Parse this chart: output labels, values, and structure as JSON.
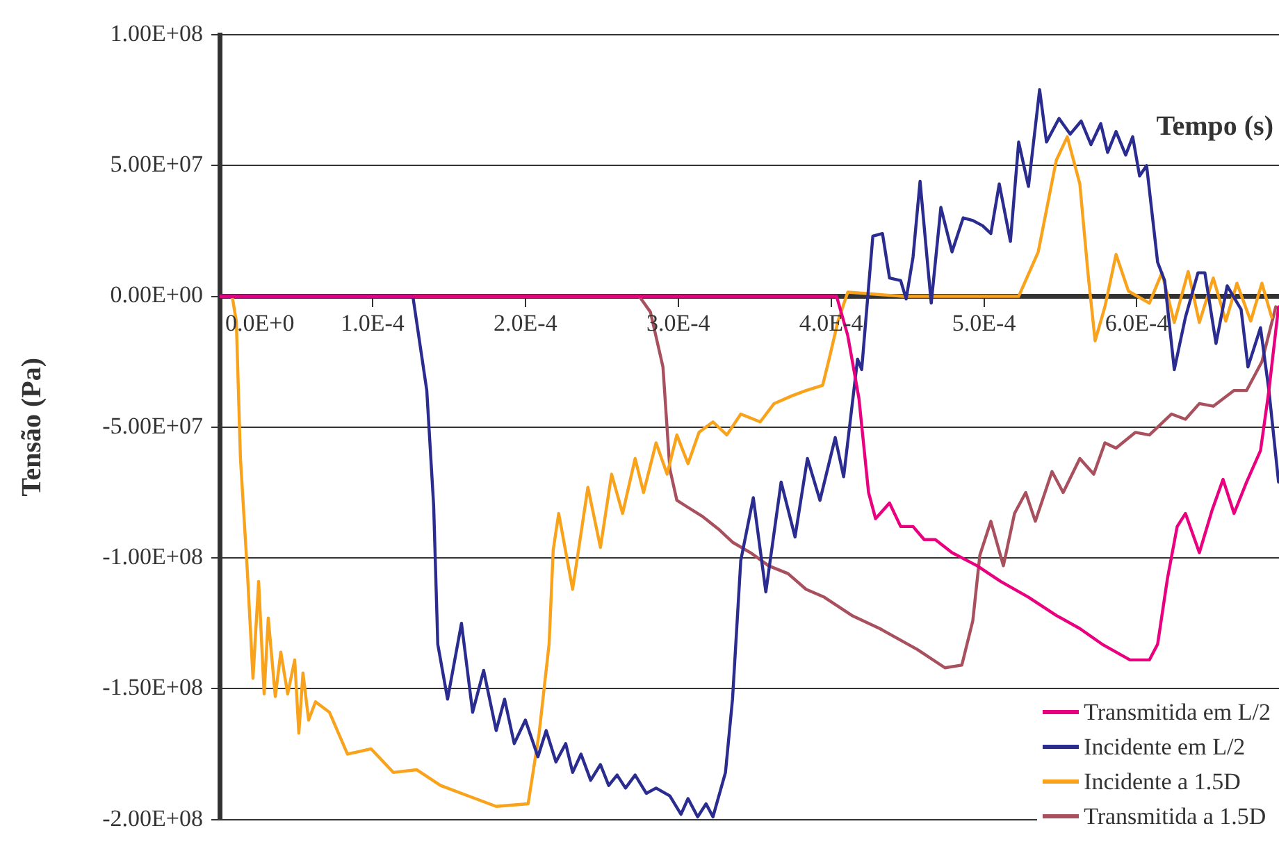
{
  "chart_data": {
    "type": "line",
    "xlabel": "Tempo (s)",
    "ylabel": "Tensão (Pa)",
    "xlim": [
      0,
      0.000693
    ],
    "ylim": [
      -200000000.0,
      100000000.0
    ],
    "xticks": [
      {
        "value": 0,
        "label": "0.0E+0"
      },
      {
        "value": 0.0001,
        "label": "1.0E-4"
      },
      {
        "value": 0.0002,
        "label": "2.0E-4"
      },
      {
        "value": 0.0003,
        "label": "3.0E-4"
      },
      {
        "value": 0.0004,
        "label": "4.0E-4"
      },
      {
        "value": 0.0005,
        "label": "5.0E-4"
      },
      {
        "value": 0.0006,
        "label": "6.0E-4"
      }
    ],
    "yticks": [
      {
        "value": -200000000.0,
        "label": "-2.00E+08"
      },
      {
        "value": -150000000.0,
        "label": "-1.50E+08"
      },
      {
        "value": -100000000.0,
        "label": "-1.00E+08"
      },
      {
        "value": -50000000.0,
        "label": "-5.00E+07"
      },
      {
        "value": 0,
        "label": "0.00E+00"
      },
      {
        "value": 50000000.0,
        "label": "5.00E+07"
      },
      {
        "value": 100000000.0,
        "label": "1.00E+08"
      }
    ],
    "grid": "y",
    "legend": "bottom right",
    "marker": "none",
    "line_style": "solid",
    "series": [
      {
        "name": "Transmitida em L/2",
        "color": "#e8007f",
        "x": [
          0.0,
          0.0004036,
          0.0004109,
          0.0004182,
          0.0004245,
          0.0004291,
          0.0004382,
          0.0004455,
          0.0004536,
          0.0004609,
          0.0004682,
          0.0004791,
          0.0004955,
          0.0005109,
          0.0005291,
          0.0005473,
          0.0005627,
          0.0005773,
          0.0005955,
          0.0006082,
          0.0006136,
          0.00062,
          0.0006264,
          0.0006318,
          0.0006409,
          0.0006491,
          0.0006564,
          0.0006636,
          0.0006718,
          0.0006809,
          0.0006864,
          0.0006927
        ],
        "values": [
          0,
          0,
          -15000000.0,
          -39000000.0,
          -75000000.0,
          -85000000.0,
          -79000000.0,
          -88000000.0,
          -88000000.0,
          -93000000.0,
          -93000000.0,
          -98000000.0,
          -103000000.0,
          -109000000.0,
          -115000000.0,
          -122000000.0,
          -127000000.0,
          -133000000.0,
          -139000000.0,
          -139000000.0,
          -133000000.0,
          -108000000.0,
          -88000000.0,
          -83000000.0,
          -98000000.0,
          -82000000.0,
          -70000000.0,
          -83000000.0,
          -71000000.0,
          -59000000.0,
          -36000000.0,
          -4000000.0
        ]
      },
      {
        "name": "Incidente em L/2",
        "color": "#2b2c8f",
        "x": [
          0.0,
          0.0001264,
          0.0001355,
          0.00014,
          0.0001427,
          0.0001491,
          0.0001582,
          0.0001655,
          0.0001727,
          0.0001809,
          0.0001864,
          0.0001927,
          0.0002,
          0.0002082,
          0.0002136,
          0.00022,
          0.0002264,
          0.0002309,
          0.0002364,
          0.0002427,
          0.0002491,
          0.0002545,
          0.00026,
          0.0002655,
          0.0002718,
          0.0002791,
          0.0002855,
          0.0002945,
          0.0003018,
          0.0003064,
          0.0003127,
          0.0003182,
          0.0003227,
          0.0003309,
          0.0003355,
          0.0003409,
          0.0003491,
          0.0003573,
          0.0003673,
          0.0003764,
          0.0003845,
          0.0003927,
          0.0004027,
          0.0004082,
          0.0004173,
          0.00042,
          0.0004273,
          0.0004336,
          0.0004382,
          0.0004455,
          0.0004491,
          0.0004536,
          0.0004582,
          0.0004627,
          0.0004655,
          0.0004718,
          0.0004791,
          0.0004864,
          0.0004927,
          0.0004991,
          0.0005045,
          0.00051,
          0.0005173,
          0.0005227,
          0.0005291,
          0.0005364,
          0.0005409,
          0.0005491,
          0.0005564,
          0.0005636,
          0.00057,
          0.0005764,
          0.0005809,
          0.0005864,
          0.0005927,
          0.0005973,
          0.0006018,
          0.0006064,
          0.0006136,
          0.0006182,
          0.0006245,
          0.0006318,
          0.00064,
          0.0006445,
          0.0006518,
          0.0006591,
          0.0006682,
          0.0006727,
          0.0006809,
          0.0006864,
          0.0006927
        ],
        "values": [
          0,
          0,
          -36000000.0,
          -80000000.0,
          -133000000.0,
          -154000000.0,
          -125000000.0,
          -159000000.0,
          -143000000.0,
          -166000000.0,
          -154000000.0,
          -171000000.0,
          -162000000.0,
          -176000000.0,
          -166000000.0,
          -178000000.0,
          -171000000.0,
          -182000000.0,
          -175000000.0,
          -185000000.0,
          -179000000.0,
          -187000000.0,
          -183000000.0,
          -188000000.0,
          -183000000.0,
          -190000000.0,
          -188000000.0,
          -191000000.0,
          -198000000.0,
          -192000000.0,
          -199000000.0,
          -194000000.0,
          -199000000.0,
          -182000000.0,
          -154000000.0,
          -101000000.0,
          -77000000.0,
          -113000000.0,
          -71000000.0,
          -92000000.0,
          -62000000.0,
          -78000000.0,
          -54000000.0,
          -69000000.0,
          -24000000.0,
          -28000000.0,
          23000000.0,
          24000000.0,
          7000000.0,
          6000000.0,
          -1000000.0,
          15000000.0,
          44000000.0,
          15000000.0,
          -2600000.0,
          34000000.0,
          17000000.0,
          30000000.0,
          29000000.0,
          27000000.0,
          24000000.0,
          43000000.0,
          21000000.0,
          59000000.0,
          42000000.0,
          79000000.0,
          59000000.0,
          68000000.0,
          62000000.0,
          67000000.0,
          58000000.0,
          66000000.0,
          55000000.0,
          63000000.0,
          54000000.0,
          61000000.0,
          46000000.0,
          50000000.0,
          13000000.0,
          6000000.0,
          -28000000.0,
          -8000000.0,
          9000000.0,
          9000000.0,
          -18000000.0,
          4000000.0,
          -5000000.0,
          -27000000.0,
          -12000000.0,
          -36000000.0,
          -71000000.0
        ]
      },
      {
        "name": "Incidente a 1.5D",
        "color": "#f9a21b",
        "x": [
          0.0,
          8.2e-06,
          1.09e-05,
          1.36e-05,
          1.82e-05,
          2.18e-05,
          2.55e-05,
          2.91e-05,
          3.18e-05,
          3.64e-05,
          4e-05,
          4.45e-05,
          4.91e-05,
          5.18e-05,
          5.45e-05,
          5.82e-05,
          6.27e-05,
          7.18e-05,
          8.36e-05,
          9.91e-05,
          0.0001136,
          0.000129,
          0.0001445,
          0.0001627,
          0.0001809,
          0.0002018,
          0.000209,
          0.0002155,
          0.0002182,
          0.0002218,
          0.0002309,
          0.0002409,
          0.0002491,
          0.0002564,
          0.0002636,
          0.0002718,
          0.0002773,
          0.0002855,
          0.0002927,
          0.0002991,
          0.0003064,
          0.0003136,
          0.0003227,
          0.0003318,
          0.0003409,
          0.0003536,
          0.0003627,
          0.0003745,
          0.0003836,
          0.0003945,
          0.0003991,
          0.0004045,
          0.0004109,
          0.000447,
          0.0004927,
          0.0005227,
          0.0005355,
          0.0005473,
          0.0005545,
          0.0005627,
          0.0005682,
          0.0005727,
          0.0005791,
          0.0005864,
          0.0005945,
          0.0006082,
          0.0006164,
          0.0006245,
          0.0006336,
          0.0006409,
          0.00065,
          0.0006582,
          0.0006655,
          0.0006745,
          0.0006818,
          0.0006882
        ],
        "values": [
          0,
          0,
          -9500000.0,
          -62000000.0,
          -106000000.0,
          -146000000.0,
          -109000000.0,
          -152000000.0,
          -123000000.0,
          -153000000.0,
          -136000000.0,
          -152000000.0,
          -139000000.0,
          -167000000.0,
          -144000000.0,
          -162000000.0,
          -155000000.0,
          -159000000.0,
          -175000000.0,
          -173000000.0,
          -182000000.0,
          -181000000.0,
          -187000000.0,
          -191000000.0,
          -195000000.0,
          -194000000.0,
          -167000000.0,
          -133000000.0,
          -97000000.0,
          -83000000.0,
          -112000000.0,
          -73000000.0,
          -96000000.0,
          -68000000.0,
          -83000000.0,
          -62000000.0,
          -75000000.0,
          -56000000.0,
          -68000000.0,
          -53000000.0,
          -64000000.0,
          -52000000.0,
          -48000000.0,
          -53000000.0,
          -45000000.0,
          -48000000.0,
          -41000000.0,
          -38000000.0,
          -36000000.0,
          -34000000.0,
          -23000000.0,
          -9500000.0,
          1600000.0,
          0,
          0,
          0,
          17000000.0,
          52000000.0,
          61000000.0,
          43000000.0,
          7900000.0,
          -17000000.0,
          -4000000.0,
          16000000.0,
          2000000.0,
          -2600000.0,
          9000000.0,
          -10000000.0,
          9500000.0,
          -10000000.0,
          7000000.0,
          -9500000.0,
          5000000.0,
          -9500000.0,
          5000000.0,
          -8000000.0
        ]
      },
      {
        "name": "Transmitida a 1.5D",
        "color": "#a8505e",
        "x": [
          0.0,
          0.0002745,
          0.0002818,
          0.00029,
          0.0002945,
          0.0002991,
          0.0003045,
          0.0003155,
          0.0003264,
          0.0003355,
          0.0003473,
          0.0003591,
          0.0003718,
          0.0003836,
          0.0003955,
          0.0004136,
          0.0004318,
          0.0004564,
          0.0004745,
          0.0004855,
          0.0004927,
          0.0004973,
          0.0005045,
          0.0005127,
          0.00052,
          0.0005273,
          0.0005336,
          0.0005445,
          0.0005518,
          0.0005627,
          0.0005718,
          0.0005791,
          0.0005864,
          0.0005991,
          0.0006082,
          0.0006227,
          0.0006318,
          0.0006409,
          0.00065,
          0.0006636,
          0.0006718,
          0.0006818,
          0.0006909
        ],
        "values": [
          0,
          0,
          -6000000.0,
          -27000000.0,
          -66000000.0,
          -78000000.0,
          -80000000.0,
          -84000000.0,
          -89000000.0,
          -94000000.0,
          -98000000.0,
          -103000000.0,
          -106000000.0,
          -112000000.0,
          -115000000.0,
          -122000000.0,
          -127000000.0,
          -135000000.0,
          -142000000.0,
          -141000000.0,
          -124000000.0,
          -99000000.0,
          -86000000.0,
          -103000000.0,
          -83000000.0,
          -75000000.0,
          -86000000.0,
          -67000000.0,
          -75000000.0,
          -62000000.0,
          -68000000.0,
          -56000000.0,
          -58000000.0,
          -52000000.0,
          -53000000.0,
          -45000000.0,
          -47000000.0,
          -41000000.0,
          -42000000.0,
          -36000000.0,
          -36000000.0,
          -25000000.0,
          -4000000.0
        ]
      }
    ]
  }
}
